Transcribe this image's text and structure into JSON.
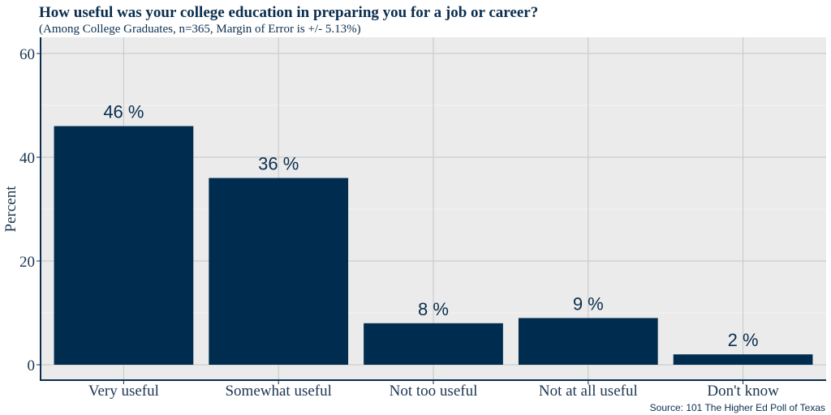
{
  "chart_data": {
    "type": "bar",
    "title": "How useful was your college education in preparing you for a job or career?",
    "subtitle": "(Among College Graduates, n=365, Margin of Error is +/- 5.13%)",
    "xlabel": "",
    "ylabel": "Percent",
    "categories": [
      "Very useful",
      "Somewhat useful",
      "Not too useful",
      "Not at all useful",
      "Don't know"
    ],
    "values": [
      46,
      36,
      8,
      9,
      2
    ],
    "data_labels": [
      "46 %",
      "36 %",
      "8 %",
      "9 %",
      "2 %"
    ],
    "ylim": [
      0,
      62
    ],
    "yticks": [
      0,
      20,
      40,
      60
    ],
    "grid": true,
    "bar_color": "#002d4f",
    "panel_background": "#ebebeb",
    "source": "Source: 101 The Higher Ed Poll of Texas"
  }
}
